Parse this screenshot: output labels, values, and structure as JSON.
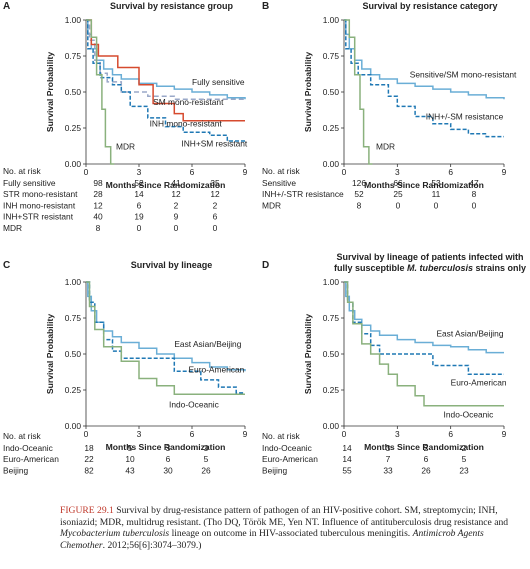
{
  "colors": {
    "fully_sensitive": "#6aaed6",
    "sm_mono": "#9aa8c8",
    "inh_mono": "#d64a2e",
    "inh_sm": "#1f78b4",
    "mdr": "#8ab17d",
    "axis": "#333333"
  },
  "chart_data": [
    {
      "panel": "A",
      "type": "line",
      "step": true,
      "title": "Survival by resistance group",
      "xlabel": "Months Since Randomization",
      "ylabel": "Survival Probability",
      "xlim": [
        0,
        9
      ],
      "ylim": [
        0,
        1
      ],
      "xticks": [
        "0",
        "3",
        "6",
        "9"
      ],
      "yticks": [
        "0.00",
        "0.25",
        "0.50",
        "0.75",
        "1.00"
      ],
      "series": [
        {
          "name": "Fully sensitive",
          "color_key": "fully_sensitive",
          "dash": "",
          "points": [
            [
              0,
              1
            ],
            [
              0.1,
              0.9
            ],
            [
              0.3,
              0.8
            ],
            [
              0.6,
              0.72
            ],
            [
              1,
              0.66
            ],
            [
              1.5,
              0.62
            ],
            [
              2,
              0.59
            ],
            [
              3,
              0.56
            ],
            [
              4,
              0.54
            ],
            [
              5,
              0.52
            ],
            [
              6,
              0.5
            ],
            [
              7,
              0.48
            ],
            [
              8,
              0.46
            ],
            [
              9,
              0.45
            ]
          ]
        },
        {
          "name": "SM mono-resistant",
          "color_key": "sm_mono",
          "dash": "5 3",
          "points": [
            [
              0,
              1
            ],
            [
              0.2,
              0.86
            ],
            [
              0.5,
              0.72
            ],
            [
              0.8,
              0.63
            ],
            [
              1.2,
              0.57
            ],
            [
              2,
              0.5
            ],
            [
              3.5,
              0.47
            ],
            [
              5,
              0.45
            ],
            [
              9,
              0.45
            ]
          ]
        },
        {
          "name": "INH mono-resistant",
          "color_key": "inh_mono",
          "dash": "",
          "points": [
            [
              0,
              1
            ],
            [
              0.3,
              0.83
            ],
            [
              0.7,
              0.75
            ],
            [
              1.5,
              0.75
            ],
            [
              1.8,
              0.67
            ],
            [
              3,
              0.55
            ],
            [
              3.8,
              0.42
            ],
            [
              5,
              0.35
            ],
            [
              5.5,
              0.3
            ],
            [
              9,
              0.3
            ]
          ]
        },
        {
          "name": "INH+SM resistant",
          "color_key": "inh_sm",
          "dash": "4 2",
          "points": [
            [
              0,
              1
            ],
            [
              0.1,
              0.8
            ],
            [
              0.4,
              0.7
            ],
            [
              0.8,
              0.6
            ],
            [
              1.5,
              0.55
            ],
            [
              2,
              0.5
            ],
            [
              2.5,
              0.4
            ],
            [
              3.5,
              0.32
            ],
            [
              4.5,
              0.26
            ],
            [
              5.5,
              0.22
            ],
            [
              7,
              0.2
            ],
            [
              8,
              0.16
            ],
            [
              9,
              0.16
            ]
          ]
        },
        {
          "name": "MDR",
          "color_key": "mdr",
          "dash": "",
          "points": [
            [
              0,
              1
            ],
            [
              0.3,
              0.88
            ],
            [
              0.6,
              0.62
            ],
            [
              0.9,
              0.38
            ],
            [
              1.1,
              0.12
            ],
            [
              1.4,
              0
            ],
            [
              1.6,
              0
            ]
          ]
        }
      ],
      "labels": [
        {
          "text": "Fully sensitive",
          "x": 6.0,
          "y": 0.55
        },
        {
          "text": "SM mono-resistant",
          "x": 3.8,
          "y": 0.41
        },
        {
          "text": "INH mono-resistant",
          "x": 3.6,
          "y": 0.26
        },
        {
          "text": "INH+SM resistant",
          "x": 5.4,
          "y": 0.12
        },
        {
          "text": "MDR",
          "x": 1.7,
          "y": 0.1
        }
      ],
      "risk_title": "No. at risk",
      "risk": [
        {
          "group": "Fully sensitive",
          "values": [
            "98",
            "52",
            "41",
            "35"
          ]
        },
        {
          "group": "STR mono-resistant",
          "values": [
            "28",
            "14",
            "12",
            "12"
          ]
        },
        {
          "group": "INH mono-resistant",
          "values": [
            "12",
            "6",
            "2",
            "2"
          ]
        },
        {
          "group": "INH+STR resistant",
          "values": [
            "40",
            "19",
            "9",
            "6"
          ]
        },
        {
          "group": "MDR",
          "values": [
            "8",
            "0",
            "0",
            "0"
          ]
        }
      ]
    },
    {
      "panel": "B",
      "type": "line",
      "step": true,
      "title": "Survival by resistance category",
      "xlabel": "Months Since Randomization",
      "ylabel": "Survival Probability",
      "xlim": [
        0,
        9
      ],
      "ylim": [
        0,
        1
      ],
      "xticks": [
        "0",
        "3",
        "6",
        "9"
      ],
      "yticks": [
        "0.00",
        "0.25",
        "0.50",
        "0.75",
        "1.00"
      ],
      "series": [
        {
          "name": "Sensitive/SM mono-resistant",
          "color_key": "fully_sensitive",
          "dash": "",
          "points": [
            [
              0,
              1
            ],
            [
              0.1,
              0.9
            ],
            [
              0.3,
              0.8
            ],
            [
              0.6,
              0.72
            ],
            [
              1,
              0.66
            ],
            [
              1.5,
              0.62
            ],
            [
              2,
              0.59
            ],
            [
              3,
              0.56
            ],
            [
              4,
              0.54
            ],
            [
              5,
              0.52
            ],
            [
              6,
              0.5
            ],
            [
              7,
              0.48
            ],
            [
              8,
              0.46
            ],
            [
              9,
              0.45
            ]
          ]
        },
        {
          "name": "INH+/-SM resistance",
          "color_key": "inh_sm",
          "dash": "4 2",
          "points": [
            [
              0,
              1
            ],
            [
              0.1,
              0.8
            ],
            [
              0.4,
              0.7
            ],
            [
              0.8,
              0.62
            ],
            [
              1.5,
              0.55
            ],
            [
              2.5,
              0.47
            ],
            [
              3,
              0.4
            ],
            [
              4,
              0.33
            ],
            [
              5,
              0.28
            ],
            [
              6,
              0.24
            ],
            [
              7,
              0.21
            ],
            [
              8,
              0.19
            ],
            [
              9,
              0.19
            ]
          ]
        },
        {
          "name": "MDR",
          "color_key": "mdr",
          "dash": "",
          "points": [
            [
              0,
              1
            ],
            [
              0.3,
              0.88
            ],
            [
              0.6,
              0.62
            ],
            [
              0.9,
              0.38
            ],
            [
              1.1,
              0.12
            ],
            [
              1.4,
              0
            ],
            [
              1.6,
              0
            ]
          ]
        }
      ],
      "labels": [
        {
          "text": "Sensitive/SM mono-resistant",
          "x": 3.7,
          "y": 0.6
        },
        {
          "text": "INH+/-SM resistance",
          "x": 4.6,
          "y": 0.31
        },
        {
          "text": "MDR",
          "x": 1.8,
          "y": 0.1
        }
      ],
      "risk_title": "No. at risk",
      "risk": [
        {
          "group": "Sensitive",
          "values": [
            "126",
            "66",
            "53",
            "47"
          ]
        },
        {
          "group": "INH+/-STR resistance",
          "values": [
            "52",
            "25",
            "11",
            "8"
          ]
        },
        {
          "group": "MDR",
          "values": [
            "8",
            "0",
            "0",
            "0"
          ]
        }
      ]
    },
    {
      "panel": "C",
      "type": "line",
      "step": true,
      "title": "Survival by lineage",
      "xlabel": "Months Since Randomization",
      "ylabel": "Survival Probability",
      "xlim": [
        0,
        9
      ],
      "ylim": [
        0,
        1
      ],
      "xticks": [
        "0",
        "3",
        "6",
        "9"
      ],
      "yticks": [
        "0.00",
        "0.25",
        "0.50",
        "0.75",
        "1.00"
      ],
      "series": [
        {
          "name": "East Asian/Beijing",
          "color_key": "fully_sensitive",
          "dash": "",
          "points": [
            [
              0,
              1
            ],
            [
              0.1,
              0.9
            ],
            [
              0.3,
              0.8
            ],
            [
              0.6,
              0.72
            ],
            [
              1,
              0.66
            ],
            [
              1.5,
              0.62
            ],
            [
              2,
              0.58
            ],
            [
              3,
              0.54
            ],
            [
              4,
              0.5
            ],
            [
              5,
              0.47
            ],
            [
              6,
              0.44
            ],
            [
              7,
              0.41
            ],
            [
              8,
              0.39
            ],
            [
              9,
              0.38
            ]
          ]
        },
        {
          "name": "Euro-American",
          "color_key": "inh_sm",
          "dash": "4 2",
          "points": [
            [
              0,
              1
            ],
            [
              0.2,
              0.86
            ],
            [
              0.5,
              0.72
            ],
            [
              1,
              0.6
            ],
            [
              1.5,
              0.52
            ],
            [
              2,
              0.47
            ],
            [
              4,
              0.47
            ],
            [
              5,
              0.38
            ],
            [
              6.5,
              0.32
            ],
            [
              7.5,
              0.27
            ],
            [
              8.5,
              0.23
            ],
            [
              9,
              0.23
            ]
          ]
        },
        {
          "name": "Indo-Oceanic",
          "color_key": "mdr",
          "dash": "",
          "points": [
            [
              0,
              1
            ],
            [
              0.2,
              0.83
            ],
            [
              0.5,
              0.67
            ],
            [
              1,
              0.55
            ],
            [
              2,
              0.45
            ],
            [
              3,
              0.33
            ],
            [
              4,
              0.28
            ],
            [
              5,
              0.22
            ],
            [
              9,
              0.22
            ]
          ]
        }
      ],
      "labels": [
        {
          "text": "East Asian/Beijing",
          "x": 5.0,
          "y": 0.55
        },
        {
          "text": "Euro-American",
          "x": 5.8,
          "y": 0.37
        },
        {
          "text": "Indo-Oceanic",
          "x": 4.7,
          "y": 0.13
        }
      ],
      "risk_title": "No. at risk",
      "risk": [
        {
          "group": "Indo-Oceanic",
          "values": [
            "18",
            "5",
            "3",
            "3"
          ]
        },
        {
          "group": "Euro-American",
          "values": [
            "22",
            "10",
            "6",
            "5"
          ]
        },
        {
          "group": "Beijing",
          "values": [
            "82",
            "43",
            "30",
            "26"
          ]
        }
      ]
    },
    {
      "panel": "D",
      "type": "line",
      "step": true,
      "title": "Survival by lineage of patients infected with",
      "title_line2": "fully susceptible",
      "title_italic": "M. tuberculosis",
      "title_line2_end": "strains only",
      "xlabel": "Months Since Randomization",
      "ylabel": "Survival Probability",
      "xlim": [
        0,
        9
      ],
      "ylim": [
        0,
        1
      ],
      "xticks": [
        "0",
        "3",
        "6",
        "9"
      ],
      "yticks": [
        "0.00",
        "0.25",
        "0.50",
        "0.75",
        "1.00"
      ],
      "series": [
        {
          "name": "East Asian/Beijing",
          "color_key": "fully_sensitive",
          "dash": "",
          "points": [
            [
              0,
              1
            ],
            [
              0.1,
              0.9
            ],
            [
              0.3,
              0.8
            ],
            [
              0.6,
              0.74
            ],
            [
              1,
              0.7
            ],
            [
              1.5,
              0.66
            ],
            [
              2,
              0.63
            ],
            [
              3,
              0.6
            ],
            [
              4,
              0.58
            ],
            [
              5,
              0.56
            ],
            [
              6,
              0.55
            ],
            [
              7,
              0.53
            ],
            [
              8,
              0.51
            ],
            [
              9,
              0.51
            ]
          ]
        },
        {
          "name": "Euro-American",
          "color_key": "inh_sm",
          "dash": "4 2",
          "points": [
            [
              0,
              1
            ],
            [
              0.2,
              0.86
            ],
            [
              0.5,
              0.72
            ],
            [
              1,
              0.64
            ],
            [
              1.5,
              0.56
            ],
            [
              2,
              0.5
            ],
            [
              4,
              0.5
            ],
            [
              5,
              0.42
            ],
            [
              6,
              0.42
            ],
            [
              7,
              0.36
            ],
            [
              9,
              0.36
            ]
          ]
        },
        {
          "name": "Indo-Oceanic",
          "color_key": "mdr",
          "dash": "",
          "points": [
            [
              0,
              1
            ],
            [
              0.2,
              0.86
            ],
            [
              0.5,
              0.71
            ],
            [
              1,
              0.57
            ],
            [
              1.5,
              0.5
            ],
            [
              2,
              0.43
            ],
            [
              2.5,
              0.36
            ],
            [
              3,
              0.28
            ],
            [
              4,
              0.21
            ],
            [
              4.5,
              0.14
            ],
            [
              9,
              0.14
            ]
          ]
        }
      ],
      "labels": [
        {
          "text": "East Asian/Beijing",
          "x": 5.2,
          "y": 0.62
        },
        {
          "text": "Euro-American",
          "x": 6.0,
          "y": 0.28
        },
        {
          "text": "Indo-Oceanic",
          "x": 5.6,
          "y": 0.06
        }
      ],
      "risk_title": "No. at risk",
      "risk": [
        {
          "group": "Indo-Oceanic",
          "values": [
            "14",
            "3",
            "2",
            "2"
          ]
        },
        {
          "group": "Euro-American",
          "values": [
            "14",
            "7",
            "6",
            "5"
          ]
        },
        {
          "group": "Beijing",
          "values": [
            "55",
            "33",
            "26",
            "23"
          ]
        }
      ]
    }
  ],
  "caption": {
    "label": "FIGURE 29.1",
    "text": "Survival by drug-resistance pattern of pathogen of an HIV-positive cohort. SM, streptomycin; INH, isoniazid; MDR, multidrug resistant. (Tho DQ, Török ME, Yen NT. Influence of antituberculosis drug resistance and",
    "italic1": "Mycobacterium tuberculosis",
    "text2": "lineage on outcome in HIV-associated tuberculous meningitis.",
    "journal": "Antimicrob Agents Chemother",
    "text3": ". 2012;56[6]:3074–3079.)"
  }
}
